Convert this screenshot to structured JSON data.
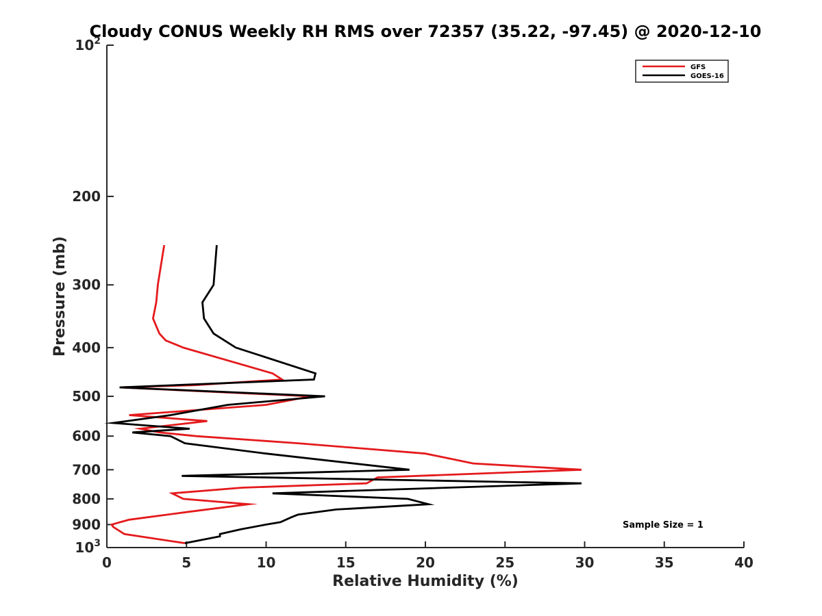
{
  "chart_data": {
    "type": "line",
    "title": "Cloudy CONUS Weekly RH RMS over 72357 (35.22, -97.45) @ 2020-12-10",
    "xlabel": "Relative Humidity (%)",
    "ylabel": "Pressure (mb)",
    "xlim": [
      0,
      40
    ],
    "ylim": [
      100,
      1000
    ],
    "yscale": "log",
    "y_reversed": true,
    "x_ticks": [
      "0",
      "5",
      "10",
      "15",
      "20",
      "25",
      "30",
      "35",
      "40"
    ],
    "y_ticks": [
      {
        "value": 100,
        "base": "10",
        "exp": "2"
      },
      {
        "value": 200,
        "label": "200"
      },
      {
        "value": 300,
        "label": "300"
      },
      {
        "value": 400,
        "label": "400"
      },
      {
        "value": 500,
        "label": "500"
      },
      {
        "value": 600,
        "label": "600"
      },
      {
        "value": 700,
        "label": "700"
      },
      {
        "value": 800,
        "label": "800"
      },
      {
        "value": 900,
        "label": "900"
      },
      {
        "value": 1000,
        "base": "10",
        "exp": "3"
      }
    ],
    "legend_position": "top-right",
    "annotation": "Sample Size = 1",
    "series": [
      {
        "name": "GFS",
        "color": "#e41a1c",
        "points": [
          [
            3.6,
            250
          ],
          [
            3.2,
            300
          ],
          [
            3.1,
            325
          ],
          [
            2.9,
            350
          ],
          [
            3.3,
            375
          ],
          [
            3.7,
            387
          ],
          [
            4.8,
            400
          ],
          [
            10.4,
            450
          ],
          [
            11.0,
            463
          ],
          [
            5.5,
            475
          ],
          [
            0.8,
            480
          ],
          [
            12.8,
            500
          ],
          [
            10.0,
            520
          ],
          [
            1.4,
            545
          ],
          [
            6.3,
            560
          ],
          [
            2.1,
            580
          ],
          [
            3.3,
            590
          ],
          [
            5.6,
            600
          ],
          [
            12.0,
            620
          ],
          [
            20.0,
            650
          ],
          [
            23.0,
            680
          ],
          [
            29.8,
            700
          ],
          [
            17.0,
            725
          ],
          [
            16.3,
            745
          ],
          [
            8.5,
            760
          ],
          [
            4.1,
            780
          ],
          [
            4.8,
            800
          ],
          [
            8.9,
            820
          ],
          [
            5.0,
            850
          ],
          [
            1.4,
            880
          ],
          [
            0.3,
            900
          ],
          [
            0.4,
            910
          ],
          [
            1.1,
            940
          ],
          [
            4.9,
            980
          ]
        ]
      },
      {
        "name": "GOES-16",
        "color": "#000000",
        "points": [
          [
            6.9,
            250
          ],
          [
            6.7,
            300
          ],
          [
            6.0,
            325
          ],
          [
            6.1,
            350
          ],
          [
            6.7,
            375
          ],
          [
            8.1,
            400
          ],
          [
            13.1,
            450
          ],
          [
            13.0,
            463
          ],
          [
            0.8,
            480
          ],
          [
            13.7,
            500
          ],
          [
            7.6,
            520
          ],
          [
            4.0,
            545
          ],
          [
            0.4,
            565
          ],
          [
            5.2,
            580
          ],
          [
            1.6,
            590
          ],
          [
            4.0,
            600
          ],
          [
            4.9,
            620
          ],
          [
            10.0,
            650
          ],
          [
            19.0,
            700
          ],
          [
            4.7,
            720
          ],
          [
            29.8,
            745
          ],
          [
            10.4,
            780
          ],
          [
            18.9,
            800
          ],
          [
            20.2,
            820
          ],
          [
            14.4,
            840
          ],
          [
            12.0,
            860
          ],
          [
            11.6,
            870
          ],
          [
            10.9,
            890
          ],
          [
            10.0,
            900
          ],
          [
            8.4,
            920
          ],
          [
            7.1,
            940
          ],
          [
            7.1,
            950
          ],
          [
            4.9,
            980
          ]
        ]
      }
    ]
  }
}
